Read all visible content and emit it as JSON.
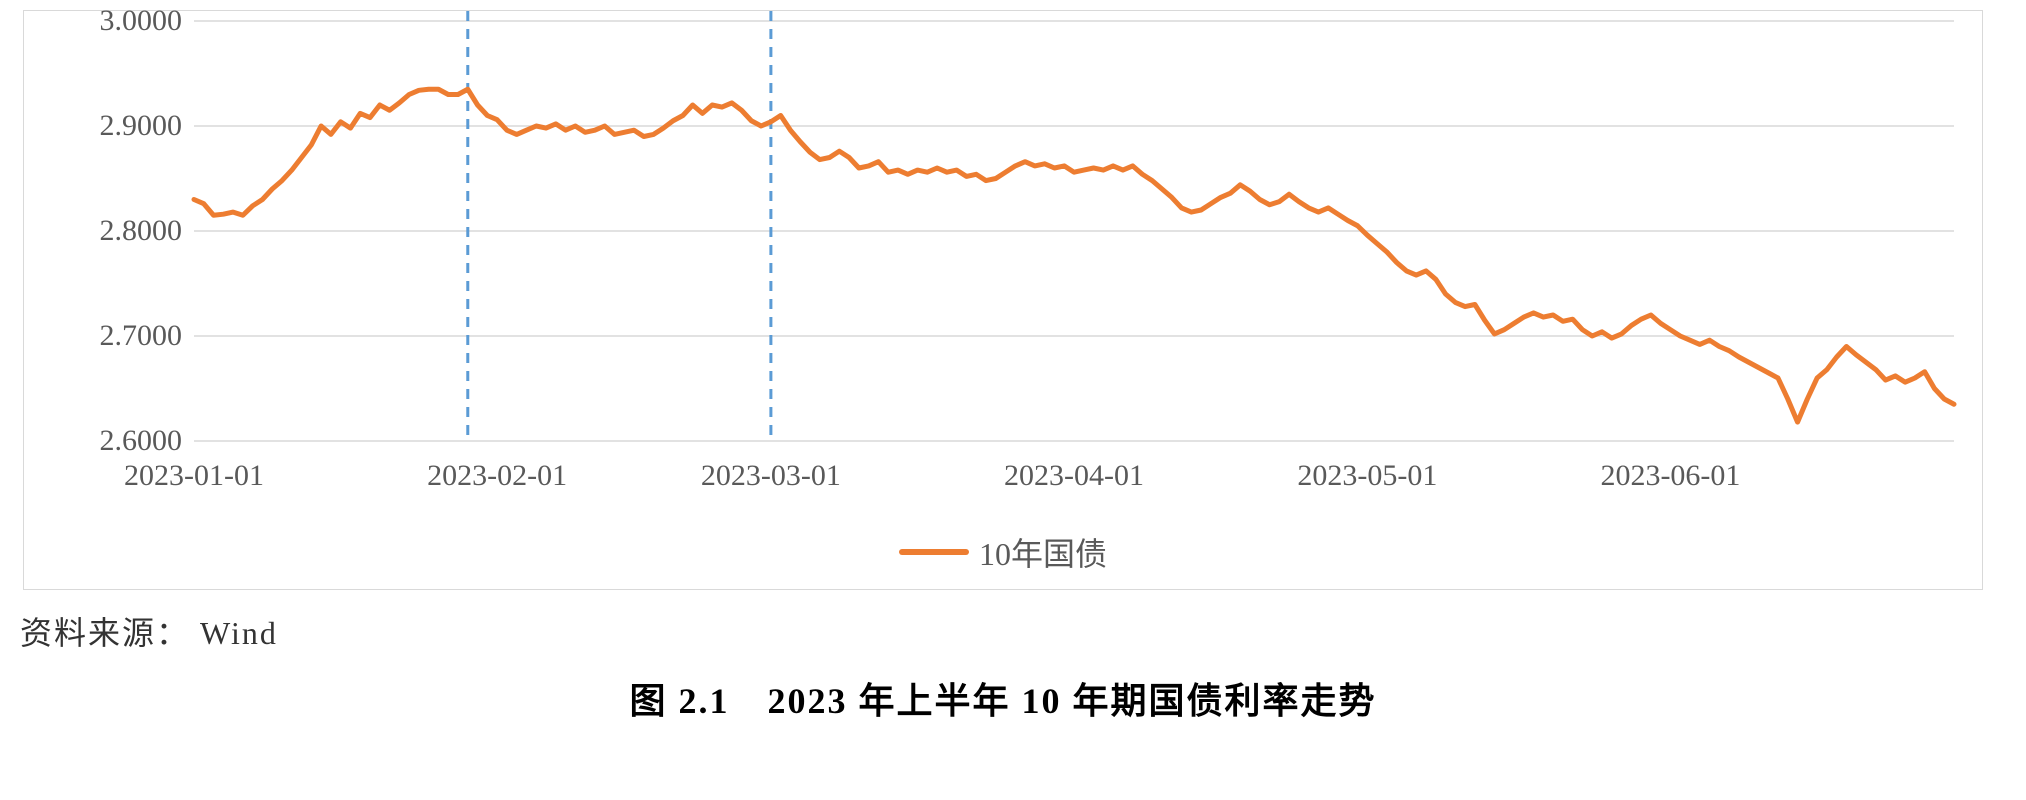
{
  "chart": {
    "type": "line",
    "series_name": "10年国债",
    "line_color": "#ed7d31",
    "line_width": 5,
    "background_color": "#ffffff",
    "border_color": "#d9d9d9",
    "gridline_color": "#d9d9d9",
    "axis_label_color": "#595959",
    "axis_fontsize": 30,
    "legend_fontsize": 32,
    "legend_position": "bottom-center",
    "ylim": [
      2.6,
      3.0
    ],
    "yticks": [
      2.6,
      2.7,
      2.8,
      2.9,
      3.0
    ],
    "ytick_labels": [
      "2.6000",
      "2.7000",
      "2.8000",
      "2.9000",
      "3.0000"
    ],
    "xticks_index": [
      0,
      31,
      59,
      90,
      120,
      151
    ],
    "xtick_labels": [
      "2023-01-01",
      "2023-02-01",
      "2023-03-01",
      "2023-04-01",
      "2023-05-01",
      "2023-06-01"
    ],
    "n_points": 181,
    "reference_lines": {
      "color": "#5b9bd5",
      "dash": "10,8",
      "width": 3,
      "x_index": [
        28,
        59
      ]
    },
    "y_values": [
      2.83,
      2.826,
      2.815,
      2.816,
      2.818,
      2.815,
      2.824,
      2.83,
      2.84,
      2.848,
      2.858,
      2.87,
      2.882,
      2.9,
      2.892,
      2.904,
      2.898,
      2.912,
      2.908,
      2.92,
      2.915,
      2.922,
      2.93,
      2.934,
      2.935,
      2.935,
      2.93,
      2.93,
      2.935,
      2.92,
      2.91,
      2.906,
      2.896,
      2.892,
      2.896,
      2.9,
      2.898,
      2.902,
      2.896,
      2.9,
      2.894,
      2.896,
      2.9,
      2.892,
      2.894,
      2.896,
      2.89,
      2.892,
      2.898,
      2.905,
      2.91,
      2.92,
      2.912,
      2.92,
      2.918,
      2.922,
      2.915,
      2.905,
      2.9,
      2.904,
      2.91,
      2.896,
      2.885,
      2.875,
      2.868,
      2.87,
      2.876,
      2.87,
      2.86,
      2.862,
      2.866,
      2.856,
      2.858,
      2.854,
      2.858,
      2.856,
      2.86,
      2.856,
      2.858,
      2.852,
      2.854,
      2.848,
      2.85,
      2.856,
      2.862,
      2.866,
      2.862,
      2.864,
      2.86,
      2.862,
      2.856,
      2.858,
      2.86,
      2.858,
      2.862,
      2.858,
      2.862,
      2.854,
      2.848,
      2.84,
      2.832,
      2.822,
      2.818,
      2.82,
      2.826,
      2.832,
      2.836,
      2.844,
      2.838,
      2.83,
      2.825,
      2.828,
      2.835,
      2.828,
      2.822,
      2.818,
      2.822,
      2.816,
      2.81,
      2.805,
      2.796,
      2.788,
      2.78,
      2.77,
      2.762,
      2.758,
      2.762,
      2.754,
      2.74,
      2.732,
      2.728,
      2.73,
      2.715,
      2.702,
      2.706,
      2.712,
      2.718,
      2.722,
      2.718,
      2.72,
      2.714,
      2.716,
      2.706,
      2.7,
      2.704,
      2.698,
      2.702,
      2.71,
      2.716,
      2.72,
      2.712,
      2.706,
      2.7,
      2.696,
      2.692,
      2.696,
      2.69,
      2.686,
      2.68,
      2.675,
      2.67,
      2.665,
      2.66,
      2.64,
      2.618,
      2.64,
      2.66,
      2.668,
      2.68,
      2.69,
      2.682,
      2.675,
      2.668,
      2.658,
      2.662,
      2.656,
      2.66,
      2.666,
      2.65,
      2.64,
      2.635
    ]
  },
  "source_prefix": "资料来源：",
  "source_value": "Wind",
  "caption": "图 2.1　2023 年上半年 10 年期国债利率走势"
}
